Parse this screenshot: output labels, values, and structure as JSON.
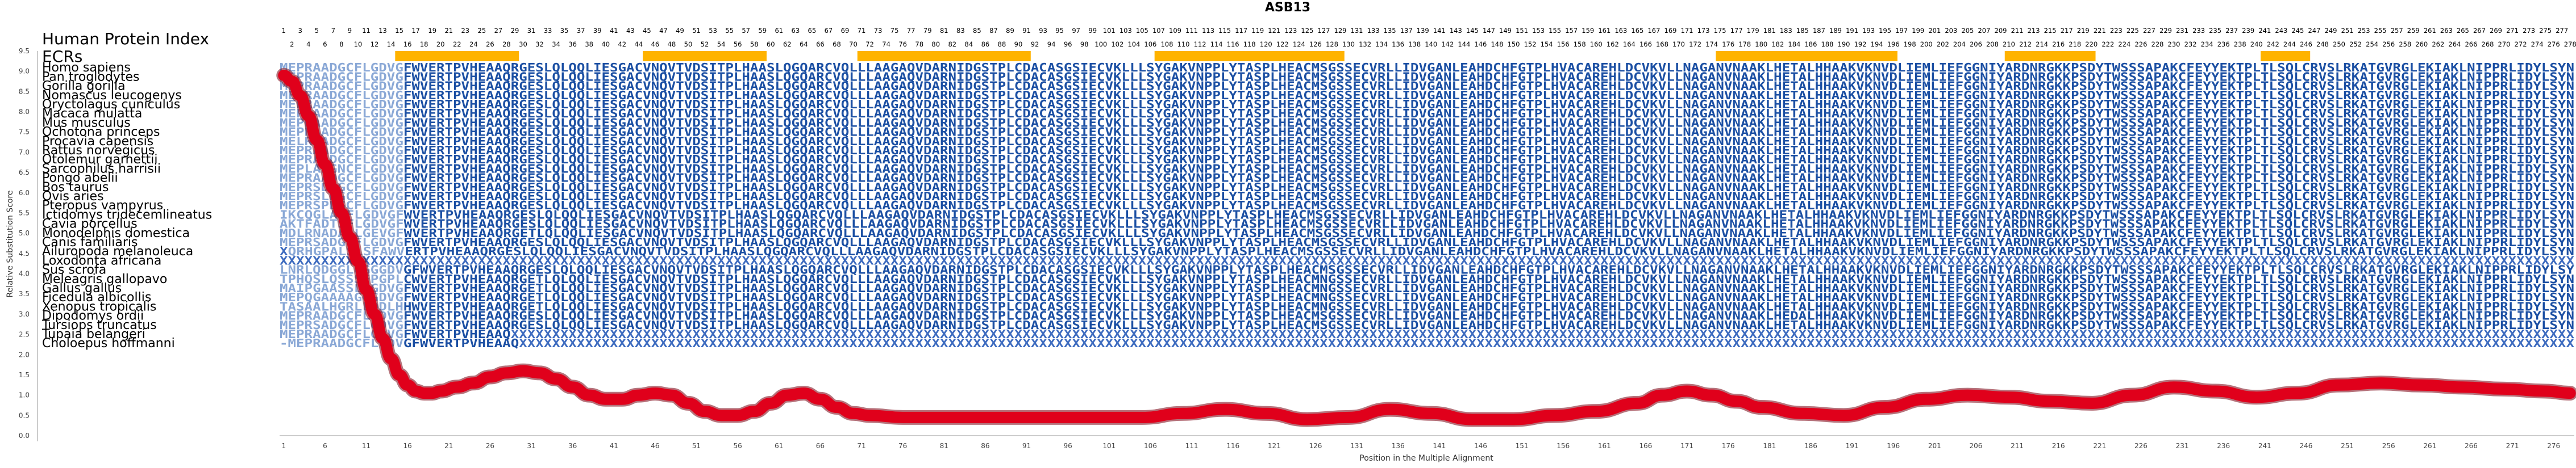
{
  "chart_data": {
    "type": "line",
    "title": "ASB13",
    "xlabel": "Position in the Multiple Alignment",
    "ylabel": "Relative Substitution Score",
    "ylim": [
      0,
      9.5
    ],
    "yticks": [
      "0.0",
      "0.5",
      "1.0",
      "1.5",
      "2.0",
      "2.5",
      "3.0",
      "3.5",
      "4.0",
      "4.5",
      "5.0",
      "5.5",
      "6.0",
      "6.5",
      "7.0",
      "7.5",
      "8.0",
      "8.5",
      "9.0",
      "9.5"
    ],
    "xlim": [
      1,
      278
    ],
    "xticks": [
      1,
      6,
      11,
      16,
      21,
      26,
      31,
      36,
      41,
      46,
      51,
      56,
      61,
      66,
      71,
      76,
      81,
      86,
      91,
      96,
      101,
      106,
      111,
      116,
      121,
      126,
      131,
      136,
      141,
      146,
      151,
      156,
      161,
      166,
      171,
      176,
      181,
      186,
      191,
      196,
      201,
      206,
      211,
      216,
      221,
      226,
      231,
      236,
      241,
      246,
      251,
      256,
      261,
      266,
      271,
      276
    ],
    "row_header": "Human Protein Index",
    "ecr_label": "ECRs",
    "human_index_row1": [
      1,
      3,
      5,
      7,
      9,
      11,
      13,
      15,
      17,
      19,
      21,
      23,
      25,
      27,
      29,
      31,
      33,
      35,
      37,
      39,
      41,
      43,
      45,
      47,
      49,
      51,
      53,
      55,
      57,
      59,
      61,
      63,
      65,
      67,
      69,
      71,
      73,
      75,
      77,
      79,
      81,
      83,
      85,
      87,
      89,
      91,
      93,
      95,
      97,
      99,
      101,
      103,
      105,
      107,
      109,
      111,
      113,
      115,
      117,
      119,
      121,
      123,
      125,
      127,
      129,
      131,
      133,
      135,
      137,
      139,
      141,
      143,
      145,
      147,
      149,
      151,
      153,
      155,
      157,
      159,
      161,
      163,
      165,
      167,
      169,
      171,
      173,
      175,
      177,
      179,
      181,
      183,
      185,
      187,
      189,
      191,
      193,
      195,
      197,
      199,
      201,
      203,
      205,
      207,
      209,
      211,
      213,
      215,
      217,
      219,
      221,
      223,
      225,
      227,
      229,
      231,
      233,
      235,
      237,
      239,
      241,
      243,
      245,
      247,
      249,
      251,
      253,
      255,
      257,
      259,
      261,
      263,
      265,
      267,
      269,
      271,
      273,
      275,
      277
    ],
    "human_index_row2": [
      2,
      4,
      6,
      8,
      10,
      12,
      14,
      16,
      18,
      20,
      22,
      24,
      26,
      28,
      30,
      32,
      34,
      36,
      38,
      40,
      42,
      44,
      46,
      48,
      50,
      52,
      54,
      56,
      58,
      60,
      62,
      64,
      66,
      68,
      70,
      72,
      74,
      76,
      78,
      80,
      82,
      84,
      86,
      88,
      90,
      92,
      94,
      96,
      98,
      100,
      102,
      104,
      106,
      108,
      110,
      112,
      114,
      116,
      118,
      120,
      122,
      124,
      126,
      128,
      130,
      132,
      134,
      136,
      138,
      140,
      142,
      144,
      146,
      148,
      150,
      152,
      154,
      156,
      158,
      160,
      162,
      164,
      166,
      168,
      170,
      172,
      174,
      176,
      178,
      180,
      182,
      184,
      186,
      188,
      190,
      192,
      194,
      196,
      198,
      200,
      202,
      204,
      206,
      208,
      210,
      212,
      214,
      216,
      218,
      220,
      222,
      224,
      226,
      228,
      230,
      232,
      234,
      236,
      238,
      240,
      242,
      244,
      246,
      248,
      250,
      252,
      254,
      256,
      258,
      260,
      262,
      264,
      266,
      268,
      270,
      272,
      274,
      276,
      278
    ],
    "ecr_regions": [
      [
        15,
        29
      ],
      [
        45,
        59
      ],
      [
        71,
        91
      ],
      [
        107,
        129
      ],
      [
        175,
        196
      ],
      [
        210,
        220
      ],
      [
        241,
        246
      ]
    ],
    "species": [
      {
        "name": "Homo sapiens",
        "seq": "MEPRAADGCFLGDVGFWVERTPVHEAAQRGESLQLQQLIESGACVNQVTVDSITPLHAASLQGQARCVQLLLAAGAQVDARNIDGSTPLCDACASGSIECVKLLLSYGAKVNPPLYTASPLHEACMSGSSECVRLLIDVGANLEAHDCHFGTPLHVACAREHLDCVKVLLNAGANVNAAKLHETALHHAAKVKNVDLIEMLIEFGGNIYARDNRGKKPSDYTWSSSAPAKCFEYYEKTPLTLSQLCRVSLRKATGVRGLEKIAKLNIPPRLIDYLSYN"
      },
      {
        "name": "Pan troglodytes",
        "seq": "MEPRAADGCFLGDVGFWVERTPVHEAAQRGESLQLQQLIESGACVNQVTVDSITPLHAASLQGQARCVQLLLAAGAQVDARNIDGSTPLCDACASGSIECVKLLLSYGAKVNPPLYTASPLHEACMSGSSECVRLLIDVGANLEAHDCHFGTPLHVACAREHLDCVKVLLNAGANVNAAKLHETALHHAAKVKNVDLIEMLIEFGGNIYARDNRGKKPSDYTWSSSAPAKCFEYYEKTPLTLSQLCRVSLRKATGVRGLEKIAKLNIPPRLIDYLSYN"
      },
      {
        "name": "Gorilla gorilla",
        "seq": "MEPRAADGCFLGDVGFWVERTPVHEAAQRGESLQLQQLIESGACVNQVTVDSITPLHAASLQGQARCVQLLLAAGAQVDARNIDGSTPLCDACASGSIECVKLLLSYGAKVNPPLYTASPLHEACMSGSSECVRLLIDVGANLEAHDCHFGTPLHVACAREHLDCVKVLLNAGANVNAAKLHETALHHAAKVKNVDLIEMLIEFGGNIYARDNRGKKPSDYTWSSSAPAKCFEYYEKTPLTLSQLCRVSLRKATGVRGLEKIAKLNIPPRLIDYLSYN"
      },
      {
        "name": "Nomascus leucogenys",
        "seq": "MEPRAADGCFLGDVGFWVERTPVHEAAQRGESLQLQQLIESGACVNQVTVDSITPLHAASLQGQARCVQLLLAAGAQVDARNIDGSTPLCDACASGSIECVKLLLSYGAKVNPPLYTASPLHEACMSGSSECVRLLIDVGANLEAHDCHFGTPLHVACAREHLDCVKVLLNAGANVNAAKLHETALHHAAKVKNVDLIEMLIEFGGNIYARDNRGKKPSDYTWSSSAPAKCFEYYEKTPLTLSQLCRVSLRKATGVRGLEKIAKLNIPPRLIDYLSYN"
      },
      {
        "name": "Oryctolagus cuniculus",
        "seq": "MEPRAADGCFLGDVGFWVERTPVHEAAQRGESLQLQQLIESGACVNQVTVDSITPLHAASLQGQARCVQLLLAAGAQVDARNIDGSTPLCDACASGSIECVKLLLSYGAKVNPPLYTASPLHEACMSGSSECVRLLIDVGANLEAHDCHFGTPLHVACAREHLDCVKVLLNAGANVNAAKLHETALHHAAKVKNVDLIEMLIEFGGNIYARDNRGKKPSDYTWSSSAPAKCFEYYEKTPLTLSQLCRVSLRKATGVRGLEKIAKLNIPPRLIDYLSYN"
      },
      {
        "name": "Macaca mulatta",
        "seq": "MEPRAADGCFLGDVGFWVERTPVHEAAQRGESLQLQQLIESGACVNQVTVDSITPLHAASLQGQARCVQLLLAAGAQVDARNIDGSTPLCDACASGSIECVKLLLSYGAKVNPPLYTASPLHEACMSGSSECVRLLIDVGANLEAHDCHFGTPLHVACAREHLDCVKVLLNAGANVNAAKLHETALHHAAKVKNVDLIEMLIEFGGNIYARDNRGKKPSDYTWSSSAPAKCFEYYEKTPLTLSQLCRVSLRKATGVRGLEKIAKLNIPPRLIDYLSYN"
      },
      {
        "name": "Mus musculus",
        "seq": "MEPRAADGCFLGDVGFWVERTPVHEAAQRGESLQLQQLIESGACVNQVTVDSITPLHAASLQGQARCVQLLLAAGAQVDARNIDGSTPLCDACASGSIECVKLLLSYGAKVNPPLYTASPLHEACMSGSSECVRLLIDVGANLEAHDCHFGTPLHVACAREHLDCVKVLLNAGANVNAAKLHETALHHAAKVKNVDLIEMLIEFGGNIYARDNRGKKPSDYTWSSSAPAKCFEYYEKTPLTLSQLCRVSLRKATGVRGLEKIAKLNIPPRLIDYLSYN"
      },
      {
        "name": "Ochotona princeps",
        "seq": "MEPRAADGCFLGDVGFWVERTPVHEAAQRGESLQLQQLIESGACVNQVTVDSITPLHAASLQGQARCVQLLLAAGAQVDARNIDGSTPLCDACASGSIECVKLLLSYGAKVNPPLYTASPLHEACMSGSSECVRLLIDVGANLEAHDCHFGTPLHVACAREHLDCVKVLLNAGANVNAAKLHETALHHAAKVKNVDLIEMLIEFGGNIYARDNRGKKPSDYTWSSSAPAKCFEYYEKTPLTLSQLCRVSLRKATGVRGLEKIAKLNIPPRLIDYLSYN"
      },
      {
        "name": "Procavia capensis",
        "seq": "MELRAADGCFLGDVGFWVERTPVHEAAQRGESLQLQQLIESGACVNQVTVDSITPLHAASLQGQARCVQLLLAAGAQVDARNIDGSTPLCDACASGSIECVKLLLSYGAKVNPPLYTASPLHEACMSGSSECVRLLIDVGANLEAHDCHFGTPLHVACAREHLDCVKVLLNAGANVNAAKLHETALHHAAKVKNVDLIEMLIEFGGNIYARDNRGKKPSDYTWSSSAPAKCFEYYEKTPLTLSQLCRVSLRKATGVRGLEKIAKLNIPPRLIDYLSYN"
      },
      {
        "name": "Rattus norvegicus",
        "seq": "MEPRAADGCFLGDVGFWVERTPVHEAAQRGESLQLQQLIESGACVNQVTVDSITPLHAASLQGQARCVQLLLAAGAQVDARNIDGSTPLCDACASGSIECVKLLLSYGAKVNPPLYTASPLHEACMSGSSECVRLLIDVGANLEAHDCHFGTPLHVACAREHLDCVKVLLNAGANVNAAKLHETALHHAAKVKNVDLIEMLIEFGGNIYARDNRGKKPSDYTWSSSAPAKCFEYYEKTPLTLSQLCRVSLRKATGVRGLEKIAKLNIPPRLIDYLSYN"
      },
      {
        "name": "Otolemur garnettii",
        "seq": "MEPRAADGCFLGDVGFWVERTPVHEAAQRGESLQLQQLIESGACVNQVTVDSITPLHAASLQGQARCVQLLLAAGAQVDARNIDGSTPLCDACASGSIECVKLLLSYGAKVNPPLYTASPLHEACMSGSSECVRLLIDVGANLEAHDCHFGTPLHVACAREHLDCVKVLLNAGANVNAAKLHETALHHAAKVKNVDLIEMLIEFGGNIYARDNRGKKPSDYTWSSSAPAKCFEYYEKTPLTLSQLCRVSLRKATGVRGLEKIAKLNIPPRLIDYLSYN"
      },
      {
        "name": "Sarcophilus harrisii",
        "seq": "MEPLADGNCFLGDVGFWVERTPVHEAAQRGESLQLQQLIESGACVNQVTVDSITPLHAASLQGQARCVQLLLAAGAQVDARNIDGSTPLCDACASGSIECVKLLLSYGAKVNPPLYTASPLHEACMSGSSECVRLLIDVGANLEAHDCHFGTPLHVACAREHLDCVKVLLNAGANVNAAKLHETALHHAAKVKNVDLIEMLIEFGGNIYARDNRGKKPSDYTWSSSAPAKCFEYYEKTPLTLSQLCRVSLRKATGVRGLEKIAKLNIPPRLIDYLSYN"
      },
      {
        "name": "Pongo abelii",
        "seq": "MEPRAADGCFLGDVGFWVERTPVHEAAQRGESLQLQQLIESGACVNQVTVDSITPLHAASLQGQARCVQLLLAAGAQVDARNIDGSTPLCDACASGSIECVKLLLSYGAKVNPPLYTASPLHEACMSGSSECVRLLIDVGANLEAHDCHFGTPLHVACAREHLDCVKVLLNAGANVNAAKLHETALHHAAKVKNVDLIEMLIEFGGNIYARDNRGKKPSDYTWSSSAPAKCFEYYEKTPLTLSQLCRVSLRKATGVRGLEKIAKLNIPPRLIDYLSYN"
      },
      {
        "name": "Bos taurus",
        "seq": "MEPRSDSGCFLGDVGFWVERTPVHEAAQRGESLQLQQLIESGACVNQVTVDSITPLHAASLQGQARCVQLLLAAGAQVDARNIDGSTPLCDACASGSIECVKLLLSYGAKVNPPLYTASPLHEACMSGSSECVRLLIDVGANLEAHDCHFGTPLHVACAREHLDCVKVLLNAGANVNAAKLHETALHHAAKVKNVDLIEMLIEFGGNIYARDNRGKKPSDYTWSSSAPAKCFEYYEKTPLTLSQLCRVSLRKATGVRGLEKIAKLNIPPRLIDYLSYN"
      },
      {
        "name": "Ovis aries",
        "seq": "MEPRSLDGCFLGDVGFWVERTPVHEAAQRGESLQLQQLIESGACVNQVTVDSITPLHAASLQGQARCVQLLLAAGAQVDARNIDGSTPLCDACASGSIECVKLLLSYGAKVNPPLYTASPLHEACMSGSSECVRLLIDVGANLEAHDCHFGTPLHVACAREHLDCVKVLLNAGANVNAAKLHETALHHAAKVKNVDLIEMLIEFGGNIYARDNRGKKPSDYTWSSSAPAKCFEYYEKTPLTLSQLCRVSLRKATGVRGLEKIAKLNIPPRLIDYLSYN"
      },
      {
        "name": "Pteropus vampyrus",
        "seq": "MEPRSPDGCFLGDVGFWVERTPVHEAAQRGESLQLQQLIESGACVNQVTVDSITPLHAASLQGQARCVQLLLAAGAQVDARNIDGSTPLCDACASGSIECVKLLLSYGAKVNPPLYTASPLHEACMSGSSECVRLLIDVGANLEAHDCHFGTPLHVACAREHLDCVKVLLNAGANVNAAKLHETALHHAAKVKNVDLIEMLIEFGGNIYARDNRGKKPSDYTWSSSAPAKCFEYYEKTPLTLSQLCRVSLRKATGVRGLEKIAKLNIPPRLIDYLSYN"
      },
      {
        "name": "Ictidomys tridecemlineatus",
        "seq": "IKCQGLASFLGDVGFWVERTPVHEAAQRGESLQLQQLIESGACVNQVTVDSITPLHAASLQGQARCVQLLLAAGAQVDARNIDGSTPLCDACASGSIECVKLLLSYGAKVNPPLYTASPLHEACMSGSSECVRLLIDVGANLEAHDCHFGTPLHVACAREHLDCVKVLLNAGANVNAAKLHETALHHAAKVKNVDLIEMLIEFGGNIYARDNRGKKPSDYTWSSSAPAKCFEYYEKTPLTLSQLCRVSLRKATGVRGLEKIAKLNIPPRLIDYLSYN"
      },
      {
        "name": "Cavia porcellus",
        "seq": "AKTFADTSFLGDVGFWVERTPVHEAAQRGESLQLQQLIESGACVNQVTVDSITPLHAASLQGQARCVQLLLAAGAQVDARNIDGSTPLCDACASGSIECVKLLLSYGAKVNPPLYTASPLHEACMSGSSECVRLLIDVGANLEAHDCHFGTPLHVACAREHLDCVKVLLNAGANVNAAKLHETALHHAAKVKNVDLIEMLIEFGGNIYARDNRGKKPSDYTWSSSAPAKCFEYYEKTPLTLSQLCRVSLRKATGVRGLEKIAKLNIPPRLIDYLSYN"
      },
      {
        "name": "Monodelphis domestica",
        "seq": "MDLRNADA-LGEVGFWVERTPVHEAAQRGETLQLQQLIESGACVNQVTVDSITPLHAASLQGQARCVQLLLAAGAQVDARNIDGSTPLCDACASGSIECVKLLLSYGAKVNPPLYTASPLHEACMSGSSECVRLLIDVGANLEAHDCHFGTPLHVACAREHLDCVKVLLNAGANVNAAKLHETALHHAAKVKNVDLIEMLIEFGGNIYARDNRGKKPSDYTWSSSAPAKCFEYYEKTPLTLSQLCRVSLRKATGVRGLEKIAKLNIPPRLIDYLSYN"
      },
      {
        "name": "Canis familiaris",
        "seq": "MEPRSADGCFLGDVGFWVERTPVHEAAQRGESLQLQQLIESGACVNQVTVDSITPLHAASLQGQARCVQLLLAAGAQVDARNIDGSTPLCDACASGSIECVKLLLSYGAKVNPPLYTASPLHEACMSGSSECVRLLIDVGANLEAHDCHFGTPLHVACAREHLDCVKVLLNAGANVNAAKLHETALHHAAKVKNVDLIEMLIEFGGNIYARDNRGKKPSDYTWSSSAPAKCFEYYEKTPLTLSQLCRVSLRKATGVRGLEKIAKLNIPPRLIDYLSYN"
      },
      {
        "name": "Ailuropoda melanoleuca",
        "seq": "XQRHGPALSLSFAWVERTPVHEAAQRGESLQLQQLIESGACVNQVTVDSITPLHAASLQGQARCVQLLLAAGAQVDARNIDGSTPLCDACASGSIECVKLLLSYGAKVNPPLYTASPLHEACMSGSSECVRLLIDVGANLEAHDCHFGTPLHVACAREHLDCVKVLLNAGANVNAAKLHETALHHAAKVKNVDLIEMLIEFGGNIYARDNRGKKPSDYTWSSSAPAKCFEYYEKTPLTLSQLCRVSLRKATGVRGLEKIAKLNIPPRLIDYLSYN"
      },
      {
        "name": "Loxodonta africana",
        "seq": "XXXXXXXXXXXXXXXXXXXXXXXXXXXXXXXXXXXXXXXXXXXXXXXXXXXXXXXXXXXXXXXXXXXXXXXXXXXXXXXXXXXXXXXXXXXXXXXXXXXXXXXXXXXXXXXXXXXXXXXXXXXXXXXXXXXXXXXXXXXXXXXXXXXXXXXXXXXXXXXXXXXXXXXXXXXXXXXXXXXXXXXXXXXXXXXXXXXXXXXXXXXXXXXXXXXXXXXXXXXXXXXXXXXXXXXXXXXXXXXXXXXXXXXXXXXXXXXXXXXXXXXXXXXXXXXXXXXXXXXXX"
      },
      {
        "name": "Sus scrofa",
        "seq": "LNRLQDGGLGGGGDVGFWVERTPVHEAAQRGESLQLQQLIESGACVNQVTVDSITPLHAASLQGQARCVQLLLAAGAQVDARNIDGSTPLCDACASGSIECVKLLLSYGAKVNPPLYTASPLHEACMSGSSECVRLLIDVGANLEAHDCHFGTPLHVACAREHLDCVKVLLNAGANVNAAKLHETALHHAAKVKNVDLIEMLIEFGGNIYARDNRGKKPSDYTWSSSAPAKCFEYYEKTPLTLSQLCRVSLRKATGVRGLEKIAKLNIPPRLIDYLSYN"
      },
      {
        "name": "Meleagris gallopavo",
        "seq": "TPHQSLQSSSFPGPLCWVERTPVHEAAQRGETLQLQQLIESGACVNQVTVDSITPLHAASLQGQARCVQLLLAAGAQVDARNIDGSTPLCDACASGSIECVKLLLSYGAKVNPPLYTASPLHEACMNGSSECVRLLIDVGANLEAHDCHFGTPLHVACAREHLDCVKVLLNAGANVNAAKLHETALHHAAKVKNVDLIEMLIEFGGNIYARDNRGKKPSDYTWSSSAPAKCFEYYEKTPLTLSQLCRVSLRKATGVRGLEKIAKLNIPPRLIDYLSYN"
      },
      {
        "name": "Gallus gallus",
        "seq": "MAIPGAASSLLGDVGFWVERTPVHEAAQRGETLQLQQLIESGACVNQVTVDSITPLHAASLQGQARCVQLLLAAGAQVDARNIDGSTPLCDACASGSIECVKLLLSYGAKVNPPLYTASPLHEACMNGSSECVRLLIDVGANLEAHDCHFGTPLHVACAREHLDCVKVLLNAGANVNAAKLHETALHHAAKVKNVDLIEMLIEFGGNIYARDNRGKKPSDYTWSSSAPAKCFEYYEKTPLTLSQLCRVSLRKATGVRGLEKIAKLNIPPRLIDYLSYN"
      },
      {
        "name": "Ficedula albicollis",
        "seq": "MEPQGAAAAGGGDVGFWVERTPVHEAAQRGETLQLQQLIESGACVNQVTVDSITPLHAASLQGQARCVQLLLAAGAQVDARNIDGSTPLCDACASGSIECVKLLLSYGAKVNPPLYTASPLHEACMNGSSECVRLLIDVGANLEAHDCHFGTPLHVACAREHLDCVKVLLNAGANVNAAKLHETALHHAAKVKNVDLIEMLIEFGGNIYARDNRGKKPSDYTWSSSAPAKCFEYYEKTPLTLSQLCRVSLRKATGVRGLEKIAKLNIPPRLIDYLSYN"
      },
      {
        "name": "Xenopus tropicalis",
        "seq": "TASAALHGRLLDDLHHWVERTPVHEAAQRGETLQLQQLIESGACVNQVTVDSITPLHAASLQGQARCVQLLLAAGAQVDARNIDGSTPLCDACASGSIECVKLLLSYGAKVNPPLYTASPLHEACMNGSSECVRLLIDVGANLEAHDCHFGTPLHVACAREHLDCVKVLLNAGANVNAAKLHETALHHAAKVKNVDLIEMLIEFGGNIYARDNRGKKPSDYTWSSSAPAKCFEYYEKTPLTLSQLCRVSLRKATGVRGLEKIAKLNIPPRLIDYLSYN"
      },
      {
        "name": "Dipodomys ordii",
        "seq": "MEPRAADGCFLGDVGFWVERTPVHEAAQRGESLQLQQLIESGACVNQVTVDSITPLHAASLQGQARCVQLLLAAGAQVDARNIDGSTPLCDACASGSIECVKLLLSYGAKVNPPLYTASPLHEACMSGSSECVRLLIDVGANLEAHDCHFGTPLHVACAREHLDCVKVLLNAGANVNAAKLHEDALHHAAKVKNVDLIEMLIEFGGNIYARDNRGKKPSDYTWSSSAPAKCFEYYEKTPLTLSQLCRVSLRKATGVRGLEKIAKLNIPPRLIDYLSYN"
      },
      {
        "name": "Tursiops truncatus",
        "seq": "MEPRSADGCFLGDVGFWVERTPVHEAAQRGESLQLQQLIESGACVNQVTVDSITPLHAASLQGQARCVQLLLAAGAQVDARNIDGSTPLCDACASGSIECVKLLLSYGAKVNPPLYTASPLHEACMSGSSECVRLLIDVGANLEAHDCHFGTPLHVACAREHLDCVKVLLNAGANVNAAKLHETALHHAAKVKNVDLIEMLIEFGGNIYARDNRGKKPSDYTWSSSAPAKCFEYYEKTPLTLSQLCRVSLRKATGVRGLEKIAKLNIPPRLIDYLSYN"
      },
      {
        "name": "Tupaia belangeri",
        "seq": "MEPRAADGCFLGDVGFWVERTPVHEAAQXXXXXXXXXXXXXXXXXXXXXXXXXXXXXXXXXXXXXXXXXXXXXXXXXXXXXXXXXXXXXXXXXXXXXXXXXXXXXXXXXXXXXXXXXXXXXXXXXXXXXXXXXXXXXXXXXXXXXXXXXXXXXXXXXXXXXXXXXXXXXXXXXXXXXXXXXXXXXXXXXXXXXXXXXXXXXXXXXXXXXXXXXXXXXXXXXXXXXXXXXXXXXXXXXXXXXXXXXXXXXXXXXXXXXXXXXXXXXXXXXXXXXXXXXXX"
      },
      {
        "name": "Choloepus hoffmanni",
        "seq": "-MEPRAADGCFLGDVGFWVERTPVHEAAQXXXXXXXXXXXXXXXXXXXXXXXXXXXXXXXXXXXXXXXXXXXXXXXXXXXXXXXXXXXXXXXXXXXXXXXXXXXXXXXXXXXXXXXXXXXXXXXXXXXXXXXXXXXXXXXXXXXXXXXXXXXXXXXXXXXXXXXXXXXXXXXXXXXXXXXXXXXXXXXXXXXXXXXXXXXXXXXXXXXXXXXXXXXXXXXXXXXXXXXXXXXXXXXXXXXXXXXXXXXXXXXXXXXXXXXXXXXXXXXXXXXXXXXXX"
      }
    ],
    "series": [
      {
        "color": "#e0001b",
        "x": [
          1,
          2,
          3,
          4,
          5,
          6,
          7,
          8,
          9,
          10,
          11,
          12,
          13,
          14,
          15,
          16,
          17,
          18,
          19,
          20,
          22,
          24,
          26,
          28,
          30,
          32,
          34,
          36,
          38,
          40,
          42,
          44,
          46,
          48,
          50,
          52,
          54,
          56,
          58,
          60,
          62,
          64,
          66,
          68,
          70,
          72,
          76,
          80,
          85,
          90,
          95,
          100,
          105,
          110,
          115,
          120,
          125,
          130,
          135,
          140,
          145,
          150,
          155,
          160,
          165,
          168,
          171,
          174,
          177,
          180,
          185,
          190,
          195,
          200,
          205,
          210,
          215,
          220,
          225,
          230,
          235,
          240,
          245,
          250,
          255,
          260,
          265,
          270,
          275,
          278
        ],
        "y": [
          8.9,
          8.75,
          8.4,
          7.9,
          7.3,
          6.7,
          6.1,
          5.5,
          4.9,
          4.3,
          3.6,
          3.0,
          2.4,
          1.9,
          1.5,
          1.25,
          1.1,
          1.05,
          1.05,
          1.1,
          1.2,
          1.3,
          1.45,
          1.55,
          1.6,
          1.55,
          1.4,
          1.2,
          1.0,
          0.9,
          0.9,
          1.0,
          1.05,
          1.0,
          0.8,
          0.6,
          0.5,
          0.5,
          0.6,
          0.8,
          1.0,
          1.05,
          0.9,
          0.7,
          0.55,
          0.5,
          0.45,
          0.45,
          0.45,
          0.45,
          0.45,
          0.45,
          0.45,
          0.55,
          0.65,
          0.55,
          0.4,
          0.45,
          0.65,
          0.55,
          0.4,
          0.4,
          0.5,
          0.6,
          0.8,
          1.0,
          1.1,
          1.0,
          0.85,
          0.7,
          0.55,
          0.5,
          0.7,
          0.9,
          1.0,
          0.95,
          0.85,
          0.8,
          1.0,
          1.2,
          1.1,
          0.95,
          1.05,
          1.25,
          1.3,
          1.25,
          1.2,
          1.15,
          1.1,
          1.05
        ]
      }
    ]
  }
}
